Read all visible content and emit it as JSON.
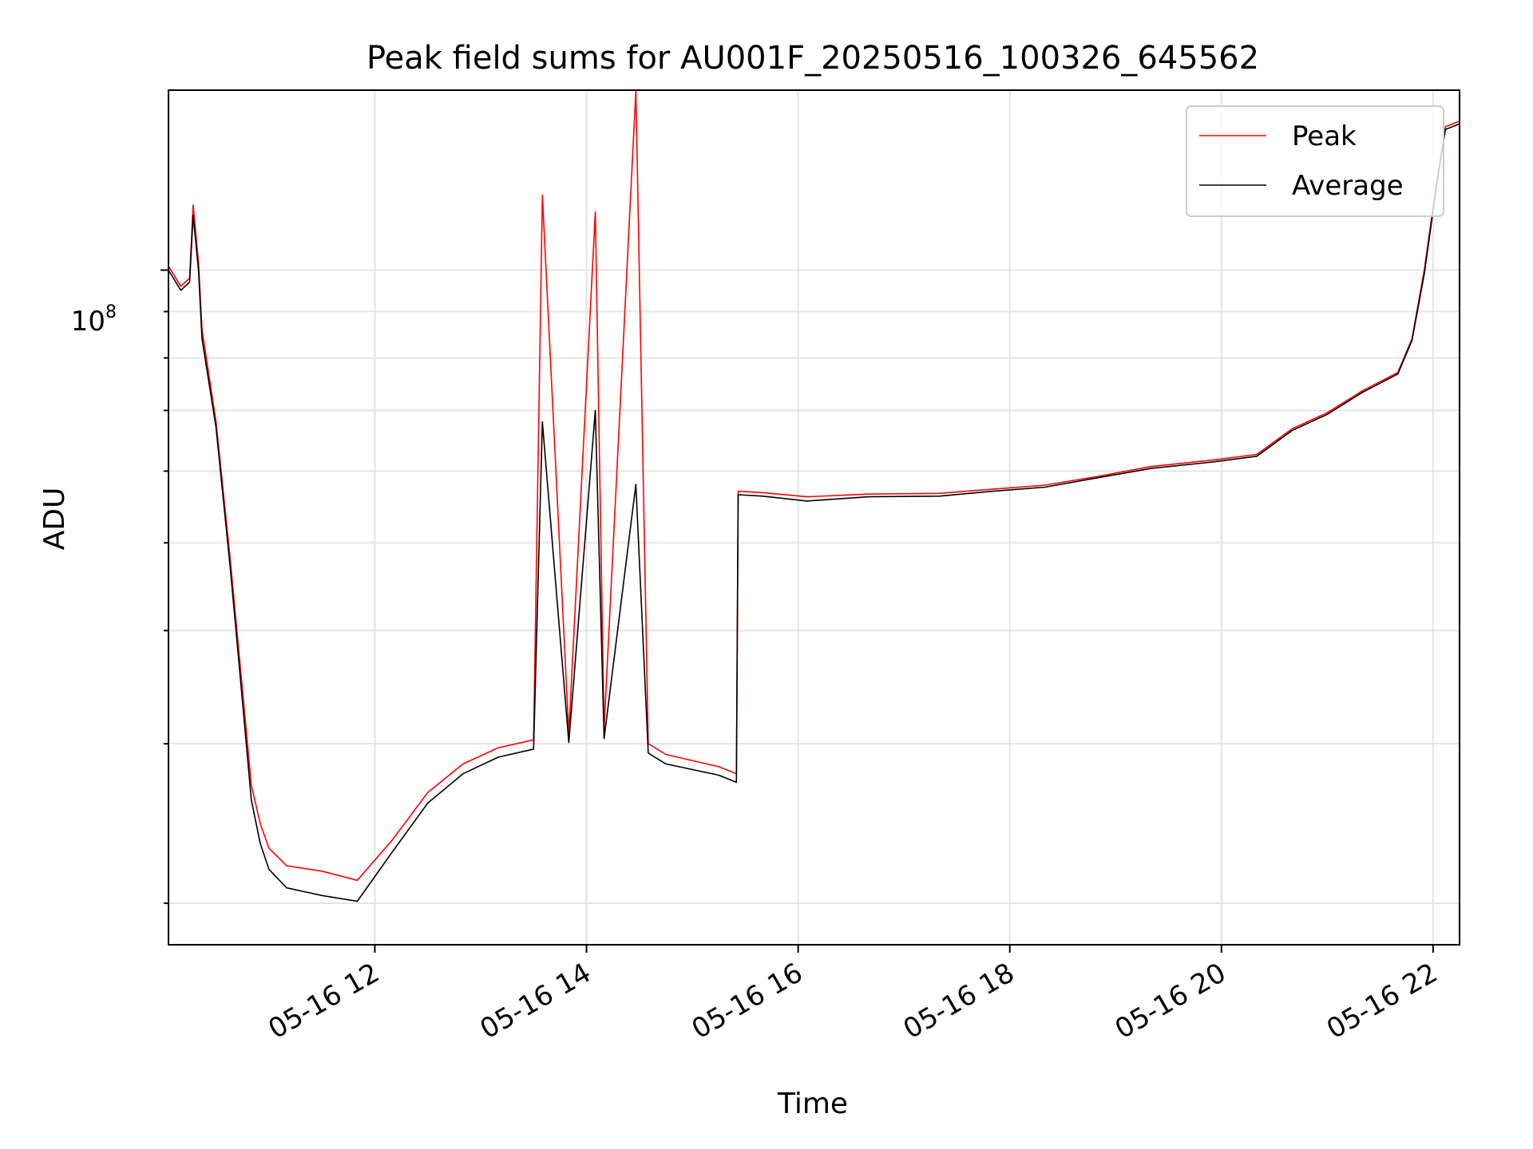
{
  "chart_data": {
    "type": "line",
    "title": "Peak field sums for AU001F_20250516_100326_645562",
    "xlabel": "Time",
    "ylabel": "ADU",
    "y_scale": "log",
    "xlim": [
      "05-16 10:03",
      "05-16 22:15"
    ],
    "ylim": [
      18000000,
      158000000
    ],
    "x_tick_labels": [
      "05-16 12",
      "05-16 14",
      "05-16 16",
      "05-16 18",
      "05-16 20",
      "05-16 22"
    ],
    "y_major_tick_label": "10^8",
    "y_major_tick_base": "10",
    "y_major_tick_exp": "8",
    "grid": true,
    "legend_position": "top-right",
    "series": [
      {
        "name": "Peak",
        "color": "#ff0000",
        "points": [
          [
            "05-16 10:03",
            101000000
          ],
          [
            "05-16 10:10",
            96000000
          ],
          [
            "05-16 10:15",
            98000000
          ],
          [
            "05-16 10:17",
            118000000
          ],
          [
            "05-16 10:20",
            102000000
          ],
          [
            "05-16 10:22",
            86000000
          ],
          [
            "05-16 10:30",
            68000000
          ],
          [
            "05-16 10:38",
            48000000
          ],
          [
            "05-16 10:44",
            36000000
          ],
          [
            "05-16 10:50",
            27000000
          ],
          [
            "05-16 10:55",
            24500000
          ],
          [
            "05-16 11:00",
            23000000
          ],
          [
            "05-16 11:10",
            22000000
          ],
          [
            "05-16 11:30",
            21700000
          ],
          [
            "05-16 11:50",
            21200000
          ],
          [
            "05-16 12:10",
            23500000
          ],
          [
            "05-16 12:30",
            26500000
          ],
          [
            "05-16 12:50",
            28500000
          ],
          [
            "05-16 13:10",
            29700000
          ],
          [
            "05-16 13:30",
            30300000
          ],
          [
            "05-16 13:35",
            121000000
          ],
          [
            "05-16 13:50",
            30800000
          ],
          [
            "05-16 14:05",
            116000000
          ],
          [
            "05-16 14:10",
            31200000
          ],
          [
            "05-16 14:28",
            158000000
          ],
          [
            "05-16 14:35",
            30000000
          ],
          [
            "05-16 14:45",
            29200000
          ],
          [
            "05-16 15:15",
            28300000
          ],
          [
            "05-16 15:25",
            27800000
          ],
          [
            "05-16 15:26",
            57000000
          ],
          [
            "05-16 15:40",
            56800000
          ],
          [
            "05-16 16:05",
            56200000
          ],
          [
            "05-16 16:40",
            56600000
          ],
          [
            "05-16 17:20",
            56700000
          ],
          [
            "05-16 17:50",
            57300000
          ],
          [
            "05-16 18:20",
            57900000
          ],
          [
            "05-16 18:50",
            59200000
          ],
          [
            "05-16 19:20",
            60700000
          ],
          [
            "05-16 19:55",
            61700000
          ],
          [
            "05-16 20:20",
            62600000
          ],
          [
            "05-16 20:40",
            66800000
          ],
          [
            "05-16 21:00",
            69600000
          ],
          [
            "05-16 21:20",
            73600000
          ],
          [
            "05-16 21:40",
            77100000
          ],
          [
            "05-16 21:48",
            84000000
          ],
          [
            "05-16 21:55",
            100000000
          ],
          [
            "05-16 22:02",
            125000000
          ],
          [
            "05-16 22:07",
            144000000
          ],
          [
            "05-16 22:15",
            146000000
          ]
        ]
      },
      {
        "name": "Average",
        "color": "#000000",
        "points": [
          [
            "05-16 10:03",
            100000000
          ],
          [
            "05-16 10:10",
            95000000
          ],
          [
            "05-16 10:15",
            97000000
          ],
          [
            "05-16 10:17",
            115000000
          ],
          [
            "05-16 10:20",
            100000000
          ],
          [
            "05-16 10:22",
            84000000
          ],
          [
            "05-16 10:30",
            67000000
          ],
          [
            "05-16 10:38",
            47000000
          ],
          [
            "05-16 10:44",
            35000000
          ],
          [
            "05-16 10:50",
            26000000
          ],
          [
            "05-16 10:55",
            23300000
          ],
          [
            "05-16 11:00",
            21800000
          ],
          [
            "05-16 11:10",
            20800000
          ],
          [
            "05-16 11:30",
            20400000
          ],
          [
            "05-16 11:50",
            20100000
          ],
          [
            "05-16 12:10",
            22800000
          ],
          [
            "05-16 12:30",
            25800000
          ],
          [
            "05-16 12:50",
            27800000
          ],
          [
            "05-16 13:10",
            29000000
          ],
          [
            "05-16 13:30",
            29600000
          ],
          [
            "05-16 13:35",
            68000000
          ],
          [
            "05-16 13:50",
            30100000
          ],
          [
            "05-16 14:05",
            70000000
          ],
          [
            "05-16 14:10",
            30400000
          ],
          [
            "05-16 14:28",
            58000000
          ],
          [
            "05-16 14:35",
            29300000
          ],
          [
            "05-16 14:45",
            28500000
          ],
          [
            "05-16 15:15",
            27700000
          ],
          [
            "05-16 15:25",
            27200000
          ],
          [
            "05-16 15:26",
            56500000
          ],
          [
            "05-16 15:40",
            56300000
          ],
          [
            "05-16 16:05",
            55600000
          ],
          [
            "05-16 16:40",
            56200000
          ],
          [
            "05-16 17:20",
            56300000
          ],
          [
            "05-16 17:50",
            57000000
          ],
          [
            "05-16 18:20",
            57600000
          ],
          [
            "05-16 18:50",
            59000000
          ],
          [
            "05-16 19:20",
            60400000
          ],
          [
            "05-16 19:55",
            61400000
          ],
          [
            "05-16 20:20",
            62300000
          ],
          [
            "05-16 20:40",
            66500000
          ],
          [
            "05-16 21:00",
            69300000
          ],
          [
            "05-16 21:20",
            73300000
          ],
          [
            "05-16 21:40",
            76800000
          ],
          [
            "05-16 21:48",
            83600000
          ],
          [
            "05-16 21:55",
            99000000
          ],
          [
            "05-16 22:02",
            124000000
          ],
          [
            "05-16 22:07",
            143000000
          ],
          [
            "05-16 22:15",
            145000000
          ]
        ]
      }
    ]
  }
}
